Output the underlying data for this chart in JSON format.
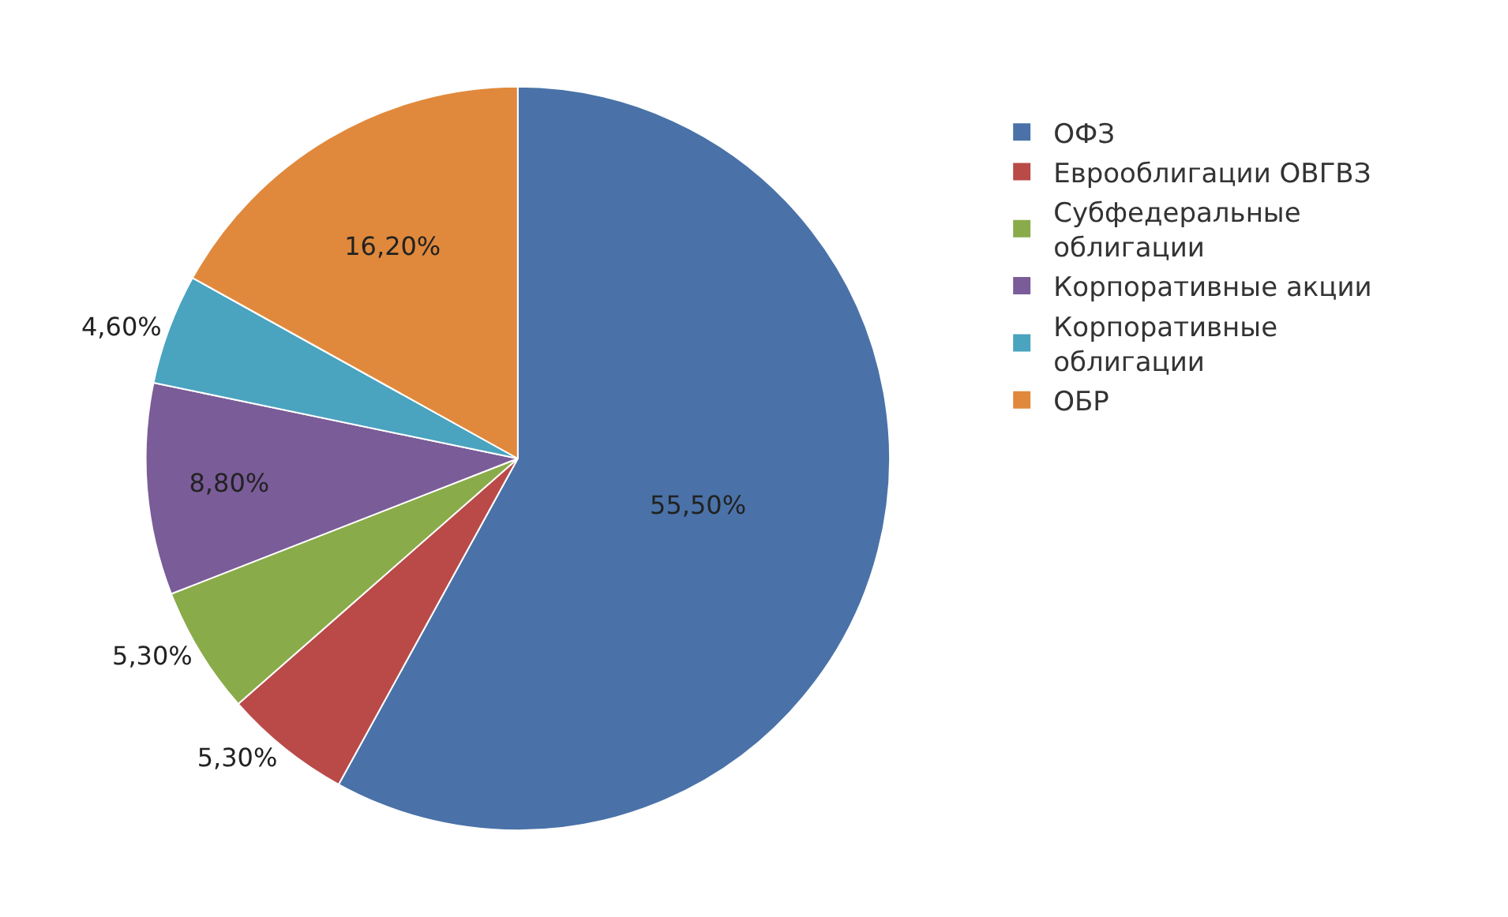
{
  "chart_data": {
    "type": "pie",
    "categories": [
      "ОФЗ",
      "Еврооблигации ОВГВЗ",
      "Субфедеральные облигации",
      "Корпоративные акции",
      "Корпоративные облигации",
      "ОБР"
    ],
    "values": [
      55.5,
      5.3,
      5.3,
      8.8,
      4.6,
      16.2
    ],
    "value_labels": [
      "55,50%",
      "5,30%",
      "5,30%",
      "8,80%",
      "4,60%",
      "16,20%"
    ],
    "colors": [
      "#4a72a8",
      "#b94a48",
      "#8aab4a",
      "#7a5c98",
      "#4aa3bf",
      "#e0893c"
    ],
    "legend": "right"
  }
}
